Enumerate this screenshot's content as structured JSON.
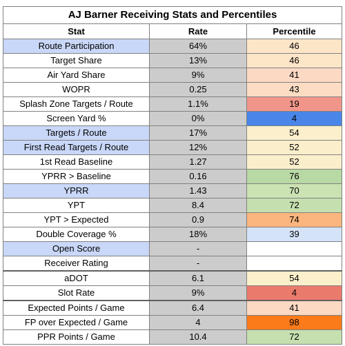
{
  "title": "AJ Barner Receiving Stats and Percentiles",
  "columns": [
    "Stat",
    "Rate",
    "Percentile"
  ],
  "colors": {
    "stat_highlight": "#c9d7f8",
    "rate_bg": "#cccccc"
  },
  "rows": [
    {
      "stat": "Route Participation",
      "rate": "64%",
      "pct": "46",
      "hl": true,
      "pct_color": "#fde5c7"
    },
    {
      "stat": "Target Share",
      "rate": "13%",
      "pct": "46",
      "hl": false,
      "pct_color": "#fde5c7"
    },
    {
      "stat": "Air Yard Share",
      "rate": "9%",
      "pct": "41",
      "hl": false,
      "pct_color": "#fbd9c3"
    },
    {
      "stat": "WOPR",
      "rate": "0.25",
      "pct": "43",
      "hl": false,
      "pct_color": "#fcddc4"
    },
    {
      "stat": "Splash Zone Targets / Route",
      "rate": "1.1%",
      "pct": "19",
      "hl": false,
      "pct_color": "#f1958a"
    },
    {
      "stat": "Screen Yard %",
      "rate": "0%",
      "pct": "4",
      "hl": false,
      "pct_color": "#4a86e8"
    },
    {
      "stat": "Targets / Route",
      "rate": "17%",
      "pct": "54",
      "hl": true,
      "pct_color": "#fbf0cb"
    },
    {
      "stat": "First Read Targets / Route",
      "rate": "12%",
      "pct": "52",
      "hl": true,
      "pct_color": "#fbefcb"
    },
    {
      "stat": "1st Read Baseline",
      "rate": "1.27",
      "pct": "52",
      "hl": false,
      "pct_color": "#fbefcb"
    },
    {
      "stat": "YPRR > Baseline",
      "rate": "0.16",
      "pct": "76",
      "hl": false,
      "pct_color": "#b8d9a4"
    },
    {
      "stat": "YPRR",
      "rate": "1.43",
      "pct": "70",
      "hl": true,
      "pct_color": "#cbe2b3"
    },
    {
      "stat": "YPT",
      "rate": "8.4",
      "pct": "72",
      "hl": false,
      "pct_color": "#c5dfaf"
    },
    {
      "stat": "YPT > Expected",
      "rate": "0.9",
      "pct": "74",
      "hl": false,
      "pct_color": "#fbb57e"
    },
    {
      "stat": "Double Coverage %",
      "rate": "18%",
      "pct": "39",
      "hl": false,
      "pct_color": "#d4e3f8"
    },
    {
      "stat": "Open Score",
      "rate": "-",
      "pct": "",
      "hl": true,
      "pct_color": "#ffffff"
    },
    {
      "stat": "Receiver Rating",
      "rate": "-",
      "pct": "",
      "hl": false,
      "pct_color": "#ffffff",
      "sep_after": true
    },
    {
      "stat": "aDOT",
      "rate": "6.1",
      "pct": "54",
      "hl": false,
      "pct_color": "#fbf0cb"
    },
    {
      "stat": "Slot Rate",
      "rate": "9%",
      "pct": "4",
      "hl": false,
      "pct_color": "#ea7a6c",
      "sep_after": true
    },
    {
      "stat": "Expected Points / Game",
      "rate": "6.4",
      "pct": "41",
      "hl": false,
      "pct_color": "#fbd9c3"
    },
    {
      "stat": "FP over Expected / Game",
      "rate": "4",
      "pct": "98",
      "hl": false,
      "pct_color": "#fb7a1a"
    },
    {
      "stat": "PPR Points / Game",
      "rate": "10.4",
      "pct": "72",
      "hl": false,
      "pct_color": "#c5dfaf"
    }
  ]
}
